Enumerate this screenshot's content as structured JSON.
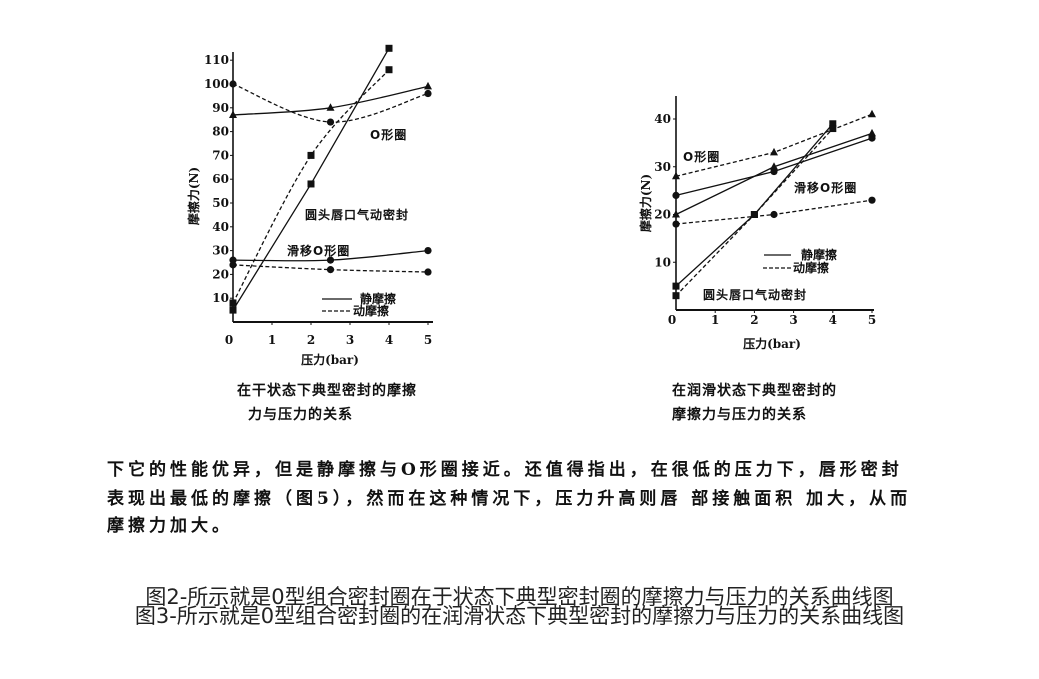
{
  "figures": {
    "left": {
      "caption_line1": "在干状态下典型密封的摩擦",
      "caption_line2": "力与压力的关系",
      "series_labels": {
        "o_ring": "O形圈",
        "lip_seal": "圆头唇口气动密封",
        "slip_ring": "滑移O形圈"
      },
      "legend": {
        "static": "静摩擦",
        "dynamic": "动摩擦"
      }
    },
    "right": {
      "caption_line1": "在润滑状态下典型密封的",
      "caption_line2": "摩擦力与压力的关系",
      "series_labels": {
        "o_ring": "O形圈",
        "lip_seal": "圆头唇口气动密封",
        "slip_ring": "滑移O形圈"
      },
      "legend": {
        "static": "静摩擦",
        "dynamic": "动摩擦"
      }
    }
  },
  "paragraph": {
    "line1": "下它的性能优异，但是静摩擦与O形圈接近。还值得指出，在很低的压力下，唇形密封",
    "line2": "表现出最低的摩擦（图5），然而在这种情况下，压力升高则唇 部接触面积 加大，从而",
    "line3": "摩擦力加大。"
  },
  "footer": {
    "line1": "图2-所示就是0型组合密封圈在于状态下典型密封圈的摩擦力与压力的关系曲线图",
    "line2": "图3-所示就是0型组合密封圈的在润滑状态下典型密封的摩擦力与压力的关系曲线图"
  },
  "chart_data": [
    {
      "type": "line",
      "title": "在干状态下典型密封的摩擦力与压力的关系",
      "xlabel": "压力(bar)",
      "ylabel": "摩擦力(N)",
      "xlim": [
        0,
        5
      ],
      "ylim": [
        0,
        110
      ],
      "xticks": [
        0,
        1,
        2,
        3,
        4,
        5
      ],
      "yticks": [
        10,
        20,
        30,
        40,
        50,
        60,
        70,
        80,
        90,
        100,
        110
      ],
      "grid": false,
      "legend": [
        {
          "label": "静摩擦",
          "line_style": "solid"
        },
        {
          "label": "动摩擦",
          "line_style": "dashed"
        }
      ],
      "series": [
        {
          "name": "O形圈 静摩擦",
          "line_style": "solid",
          "marker": "triangle",
          "smooth": true,
          "x": [
            0,
            2.5,
            5
          ],
          "y": [
            87,
            90,
            99
          ]
        },
        {
          "name": "O形圈 动摩擦",
          "line_style": "dashed",
          "marker": "circle",
          "smooth": true,
          "x": [
            0,
            2.5,
            5
          ],
          "y": [
            100,
            84,
            96
          ]
        },
        {
          "name": "圆头唇口气动密封 静摩擦",
          "line_style": "solid",
          "marker": "square",
          "smooth": false,
          "x": [
            0,
            2,
            4
          ],
          "y": [
            5,
            58,
            115
          ]
        },
        {
          "name": "圆头唇口气动密封 动摩擦",
          "line_style": "dashed",
          "marker": "square",
          "smooth": true,
          "x": [
            0,
            2,
            4
          ],
          "y": [
            8,
            70,
            106
          ]
        },
        {
          "name": "滑移O形圈 静摩擦",
          "line_style": "solid",
          "marker": "circle",
          "smooth": true,
          "x": [
            0,
            2.5,
            5
          ],
          "y": [
            26,
            26,
            30
          ]
        },
        {
          "name": "滑移O形圈 动摩擦",
          "line_style": "dashed",
          "marker": "circle",
          "smooth": true,
          "x": [
            0,
            2.5,
            5
          ],
          "y": [
            24,
            22,
            21
          ]
        }
      ]
    },
    {
      "type": "line",
      "title": "在润滑状态下典型密封的摩擦力与压力的关系",
      "xlabel": "压力(bar)",
      "ylabel": "摩擦力(N)",
      "xlim": [
        0,
        5
      ],
      "ylim": [
        0,
        45
      ],
      "xticks": [
        0,
        1,
        2,
        3,
        4,
        5
      ],
      "yticks": [
        10,
        20,
        30,
        40
      ],
      "grid": false,
      "legend": [
        {
          "label": "静摩擦",
          "line_style": "solid"
        },
        {
          "label": "动摩擦",
          "line_style": "dashed"
        }
      ],
      "series": [
        {
          "name": "O形圈 动摩擦",
          "line_style": "dashed",
          "marker": "triangle",
          "smooth": false,
          "x": [
            0,
            2.5,
            5
          ],
          "y": [
            28,
            33,
            41
          ]
        },
        {
          "name": "O形圈 静摩擦",
          "line_style": "solid",
          "marker": "circle",
          "smooth": false,
          "x": [
            0,
            2.5,
            5
          ],
          "y": [
            24,
            29,
            36
          ]
        },
        {
          "name": "滑移O形圈 静摩擦",
          "line_style": "solid",
          "marker": "triangle",
          "smooth": false,
          "x": [
            0,
            2.5,
            5
          ],
          "y": [
            20,
            30,
            37
          ]
        },
        {
          "name": "滑移O形圈 动摩擦",
          "line_style": "dashed",
          "marker": "circle",
          "smooth": false,
          "x": [
            0,
            2.5,
            5
          ],
          "y": [
            18,
            20,
            23
          ]
        },
        {
          "name": "圆头唇口气动密封 静摩擦",
          "line_style": "solid",
          "marker": "square",
          "smooth": false,
          "x": [
            0,
            2,
            4
          ],
          "y": [
            5,
            20,
            39
          ]
        },
        {
          "name": "圆头唇口气动密封 动摩擦",
          "line_style": "dashed",
          "marker": "square",
          "smooth": false,
          "x": [
            0,
            2,
            4
          ],
          "y": [
            3,
            20,
            38
          ]
        }
      ]
    }
  ]
}
